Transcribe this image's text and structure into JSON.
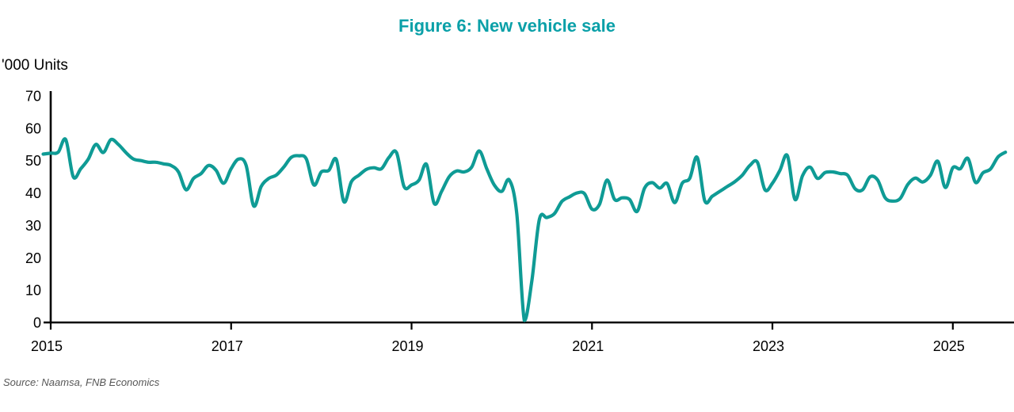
{
  "header": {
    "title": "Figure 6: New vehicle sale"
  },
  "chart_data": {
    "type": "line",
    "title": "Figure 6: New vehicle sale",
    "unit_label": "'000 Units",
    "source": "Source: Naamsa, FNB Economics",
    "x_start": "2014-12",
    "x_end": "2025-08",
    "x_unit": "month",
    "xtick_labels": [
      "2015",
      "2017",
      "2019",
      "2021",
      "2023",
      "2025"
    ],
    "xtick_month_index": [
      0,
      24,
      48,
      72,
      96,
      120
    ],
    "ytick_values": [
      0,
      10,
      20,
      30,
      40,
      50,
      60,
      70
    ],
    "ylim": [
      0,
      70
    ],
    "grid": false,
    "legend": "none",
    "series": [
      {
        "name": "New vehicle sales ('000 units, monthly)",
        "values": [
          52.0,
          52.3,
          52.6,
          56.5,
          45.0,
          47.5,
          50.5,
          55.0,
          52.5,
          56.5,
          55.0,
          52.5,
          50.5,
          50.0,
          49.5,
          49.5,
          49.0,
          48.5,
          46.5,
          41.0,
          44.5,
          46.0,
          48.5,
          47.0,
          43.0,
          47.5,
          50.5,
          48.5,
          36.0,
          42.0,
          44.5,
          45.5,
          48.0,
          51.0,
          51.5,
          50.5,
          42.5,
          46.5,
          47.0,
          50.3,
          37.3,
          43.5,
          45.5,
          47.3,
          47.8,
          47.5,
          51.0,
          52.5,
          42.0,
          42.5,
          44.0,
          48.8,
          36.8,
          40.5,
          45.0,
          46.8,
          46.5,
          48.0,
          53.0,
          47.5,
          42.5,
          40.5,
          44.0,
          33.5,
          0.6,
          12.9,
          31.9,
          32.4,
          33.6,
          37.4,
          38.8,
          40.0,
          39.8,
          35.0,
          36.5,
          44.0,
          38.0,
          38.5,
          38.0,
          34.3,
          41.5,
          43.2,
          41.5,
          42.9,
          37.0,
          43.0,
          44.5,
          51.0,
          37.6,
          39.0,
          40.5,
          42.0,
          43.5,
          45.5,
          48.5,
          49.5,
          41.0,
          43.0,
          47.0,
          51.5,
          38.0,
          45.3,
          48.0,
          44.5,
          46.3,
          46.5,
          46.0,
          45.5,
          41.3,
          41.0,
          45.0,
          44.0,
          38.5,
          37.5,
          38.3,
          42.6,
          44.6,
          43.4,
          45.4,
          49.8,
          41.7,
          47.8,
          47.5,
          50.7,
          43.3,
          46.2,
          47.4,
          51.1,
          52.6
        ]
      }
    ],
    "colors": {
      "line": "#0f9b95",
      "title": "#0aa0a8",
      "axis": "#000000",
      "tick_text": "#000000",
      "source_text": "#575757"
    }
  }
}
